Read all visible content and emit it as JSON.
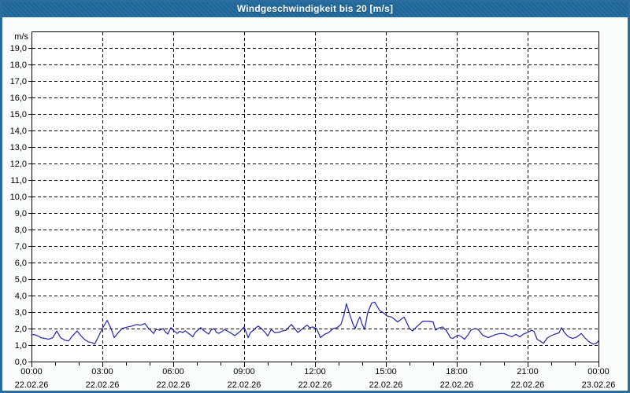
{
  "title": "Windgeschwindigkeit bis 20 [m/s]",
  "colors": {
    "titlebar_bg": "#1e689c",
    "frame_border": "#2b6d9e",
    "page_bg": "#fbfdfc",
    "plot_bg": "#ffffff",
    "grid": "#000000",
    "axis": "#000000",
    "text": "#000000",
    "line": "#2121b4",
    "title_text": "#ffffff"
  },
  "chart_data": {
    "type": "line",
    "title": "Windgeschwindigkeit bis 20 [m/s]",
    "xlabel": "",
    "ylabel": "m/s",
    "ylim": [
      0,
      20
    ],
    "y_tick_step": 1,
    "y_labels_from": 0,
    "y_labels_to": 19,
    "decimal_separator": ",",
    "xlim_hours": [
      0,
      24
    ],
    "x_minor_tick_hours": 1,
    "x_gridline_hours": [
      3,
      6,
      9,
      12,
      15,
      18,
      21
    ],
    "grid_style": "dashed",
    "legend": "none",
    "x_ticks": [
      {
        "t": 0,
        "time": "00:00",
        "date": "22.02.26"
      },
      {
        "t": 3,
        "time": "03:00",
        "date": "22.02.26"
      },
      {
        "t": 6,
        "time": "06:00",
        "date": "22.02.26"
      },
      {
        "t": 9,
        "time": "09:00",
        "date": "22.02.26"
      },
      {
        "t": 12,
        "time": "12:00",
        "date": "22.02.26"
      },
      {
        "t": 15,
        "time": "15:00",
        "date": "22.02.26"
      },
      {
        "t": 18,
        "time": "18:00",
        "date": "22.02.26"
      },
      {
        "t": 21,
        "time": "21:00",
        "date": "22.02.26"
      },
      {
        "t": 24,
        "time": "00:00",
        "date": "23.02.26"
      }
    ],
    "series": [
      {
        "name": "Windgeschwindigkeit",
        "color": "#2121b4",
        "points": [
          [
            0.0,
            1.6
          ],
          [
            0.1,
            1.65
          ],
          [
            0.27,
            1.55
          ],
          [
            0.4,
            1.45
          ],
          [
            0.57,
            1.4
          ],
          [
            0.73,
            1.35
          ],
          [
            0.9,
            1.45
          ],
          [
            1.07,
            1.85
          ],
          [
            1.23,
            1.45
          ],
          [
            1.4,
            1.3
          ],
          [
            1.57,
            1.25
          ],
          [
            1.73,
            1.55
          ],
          [
            1.93,
            1.85
          ],
          [
            2.1,
            1.55
          ],
          [
            2.23,
            1.35
          ],
          [
            2.4,
            1.2
          ],
          [
            2.57,
            1.15
          ],
          [
            2.67,
            1.05
          ],
          [
            2.83,
            1.5
          ],
          [
            3.0,
            2.0
          ],
          [
            3.2,
            2.5
          ],
          [
            3.37,
            2.0
          ],
          [
            3.5,
            1.45
          ],
          [
            3.67,
            1.75
          ],
          [
            3.83,
            2.0
          ],
          [
            4.07,
            2.1
          ],
          [
            4.23,
            2.15
          ],
          [
            4.47,
            2.25
          ],
          [
            4.6,
            2.2
          ],
          [
            4.8,
            2.3
          ],
          [
            4.93,
            2.05
          ],
          [
            5.07,
            1.85
          ],
          [
            5.17,
            1.7
          ],
          [
            5.27,
            1.95
          ],
          [
            5.43,
            1.9
          ],
          [
            5.57,
            2.0
          ],
          [
            5.67,
            1.78
          ],
          [
            5.77,
            1.67
          ],
          [
            5.9,
            2.05
          ],
          [
            6.0,
            1.9
          ],
          [
            6.17,
            1.7
          ],
          [
            6.27,
            1.83
          ],
          [
            6.4,
            1.76
          ],
          [
            6.5,
            1.86
          ],
          [
            6.6,
            1.76
          ],
          [
            6.73,
            1.62
          ],
          [
            6.83,
            1.5
          ],
          [
            6.93,
            1.76
          ],
          [
            7.07,
            1.95
          ],
          [
            7.17,
            2.05
          ],
          [
            7.27,
            1.9
          ],
          [
            7.4,
            1.76
          ],
          [
            7.5,
            1.67
          ],
          [
            7.6,
            1.9
          ],
          [
            7.73,
            2.0
          ],
          [
            7.83,
            1.76
          ],
          [
            7.93,
            1.71
          ],
          [
            8.07,
            1.83
          ],
          [
            8.17,
            1.95
          ],
          [
            8.27,
            1.86
          ],
          [
            8.4,
            1.76
          ],
          [
            8.5,
            1.67
          ],
          [
            8.6,
            1.57
          ],
          [
            8.73,
            1.71
          ],
          [
            8.83,
            1.83
          ],
          [
            8.93,
            2.0
          ],
          [
            9.0,
            2.1
          ],
          [
            9.17,
            1.45
          ],
          [
            9.27,
            1.76
          ],
          [
            9.4,
            1.9
          ],
          [
            9.5,
            2.05
          ],
          [
            9.6,
            2.15
          ],
          [
            9.73,
            2.0
          ],
          [
            9.9,
            1.75
          ],
          [
            10.0,
            1.55
          ],
          [
            10.15,
            1.95
          ],
          [
            10.3,
            1.75
          ],
          [
            10.5,
            1.78
          ],
          [
            10.6,
            1.85
          ],
          [
            10.77,
            1.9
          ],
          [
            11.0,
            2.25
          ],
          [
            11.17,
            1.95
          ],
          [
            11.27,
            1.76
          ],
          [
            11.4,
            1.9
          ],
          [
            11.6,
            2.15
          ],
          [
            11.67,
            2.2
          ],
          [
            11.77,
            2.05
          ],
          [
            11.9,
            2.1
          ],
          [
            12.07,
            2.0
          ],
          [
            12.23,
            1.45
          ],
          [
            12.4,
            1.65
          ],
          [
            12.57,
            1.75
          ],
          [
            12.77,
            2.0
          ],
          [
            12.93,
            2.05
          ],
          [
            13.1,
            2.25
          ],
          [
            13.23,
            2.85
          ],
          [
            13.33,
            3.5
          ],
          [
            13.47,
            2.85
          ],
          [
            13.6,
            2.3
          ],
          [
            13.7,
            2.0
          ],
          [
            13.83,
            2.5
          ],
          [
            13.9,
            2.7
          ],
          [
            14.0,
            2.25
          ],
          [
            14.1,
            1.95
          ],
          [
            14.23,
            2.95
          ],
          [
            14.4,
            3.55
          ],
          [
            14.53,
            3.6
          ],
          [
            14.73,
            3.1
          ],
          [
            14.9,
            2.95
          ],
          [
            15.07,
            2.75
          ],
          [
            15.23,
            2.7
          ],
          [
            15.33,
            2.6
          ],
          [
            15.5,
            2.4
          ],
          [
            15.77,
            2.7
          ],
          [
            16.0,
            2.0
          ],
          [
            16.13,
            1.85
          ],
          [
            16.33,
            2.15
          ],
          [
            16.57,
            2.45
          ],
          [
            16.83,
            2.45
          ],
          [
            17.0,
            2.4
          ],
          [
            17.1,
            1.9
          ],
          [
            17.27,
            2.05
          ],
          [
            17.4,
            2.1
          ],
          [
            17.57,
            1.85
          ],
          [
            17.73,
            1.45
          ],
          [
            17.83,
            1.4
          ],
          [
            17.93,
            1.5
          ],
          [
            18.07,
            1.6
          ],
          [
            18.2,
            1.5
          ],
          [
            18.33,
            1.35
          ],
          [
            18.47,
            1.6
          ],
          [
            18.6,
            1.9
          ],
          [
            18.77,
            2.0
          ],
          [
            18.9,
            1.95
          ],
          [
            19.1,
            1.6
          ],
          [
            19.33,
            1.45
          ],
          [
            19.5,
            1.55
          ],
          [
            19.67,
            1.65
          ],
          [
            19.83,
            1.7
          ],
          [
            20.0,
            1.7
          ],
          [
            20.17,
            1.6
          ],
          [
            20.33,
            1.5
          ],
          [
            20.5,
            1.65
          ],
          [
            20.67,
            1.5
          ],
          [
            20.83,
            1.67
          ],
          [
            21.0,
            1.76
          ],
          [
            21.17,
            1.9
          ],
          [
            21.27,
            1.83
          ],
          [
            21.4,
            1.35
          ],
          [
            21.57,
            1.2
          ],
          [
            21.67,
            1.1
          ],
          [
            21.83,
            1.43
          ],
          [
            22.0,
            1.57
          ],
          [
            22.17,
            1.67
          ],
          [
            22.33,
            1.74
          ],
          [
            22.43,
            2.05
          ],
          [
            22.57,
            1.74
          ],
          [
            22.73,
            1.5
          ],
          [
            22.9,
            1.4
          ],
          [
            23.07,
            1.48
          ],
          [
            23.27,
            1.7
          ],
          [
            23.43,
            1.43
          ],
          [
            23.6,
            1.2
          ],
          [
            23.77,
            1.05
          ],
          [
            23.9,
            1.1
          ],
          [
            24.0,
            1.25
          ]
        ]
      }
    ]
  }
}
